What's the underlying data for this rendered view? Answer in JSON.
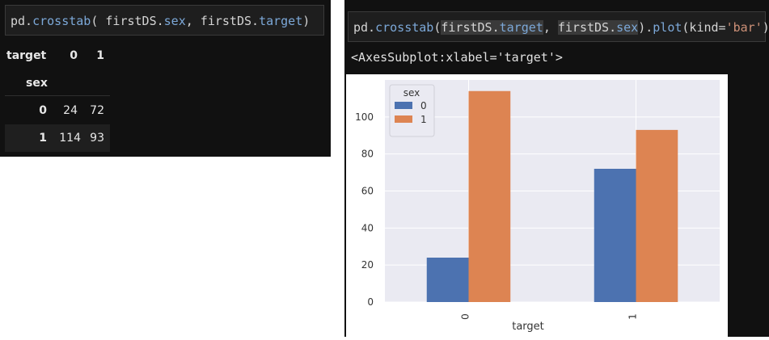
{
  "left_cell": {
    "code": {
      "prefix": "pd.",
      "fn": "crosstab",
      "args_a": "( firstDS.",
      "arg1_attr": "sex",
      "args_b": ", firstDS.",
      "arg2_attr": "target",
      "suffix": ")"
    },
    "table": {
      "columns_name": "target",
      "columns": [
        "0",
        "1"
      ],
      "index_name": "sex",
      "rows": [
        {
          "label": "0",
          "values": [
            "24",
            "72"
          ]
        },
        {
          "label": "1",
          "values": [
            "114",
            "93"
          ]
        }
      ]
    }
  },
  "right_cell": {
    "code": {
      "prefix": "pd.",
      "fn": "crosstab",
      "open": "(",
      "h1": "firstDS.",
      "h1_attr": "target",
      "mid": ", ",
      "h2": "firstDS.",
      "h2_attr": "sex",
      "close": ").",
      "fn2": "plot",
      "kw": "(kind=",
      "kw_val": "'bar'",
      "end": ")"
    },
    "output_text": "<AxesSubplot:xlabel='target'>"
  },
  "chart_data": {
    "type": "bar",
    "categories": [
      "0",
      "1"
    ],
    "series": [
      {
        "name": "0",
        "values": [
          24,
          72
        ]
      },
      {
        "name": "1",
        "values": [
          114,
          93
        ]
      }
    ],
    "colors": [
      "#4c72b0",
      "#dd8452"
    ],
    "xlabel": "target",
    "ylabel": "",
    "legend_title": "sex",
    "legend_position": "top-left",
    "ylim": [
      0,
      120
    ],
    "y_ticks": [
      0,
      20,
      40,
      60,
      80,
      100
    ],
    "grid": true,
    "style": "seaborn"
  }
}
